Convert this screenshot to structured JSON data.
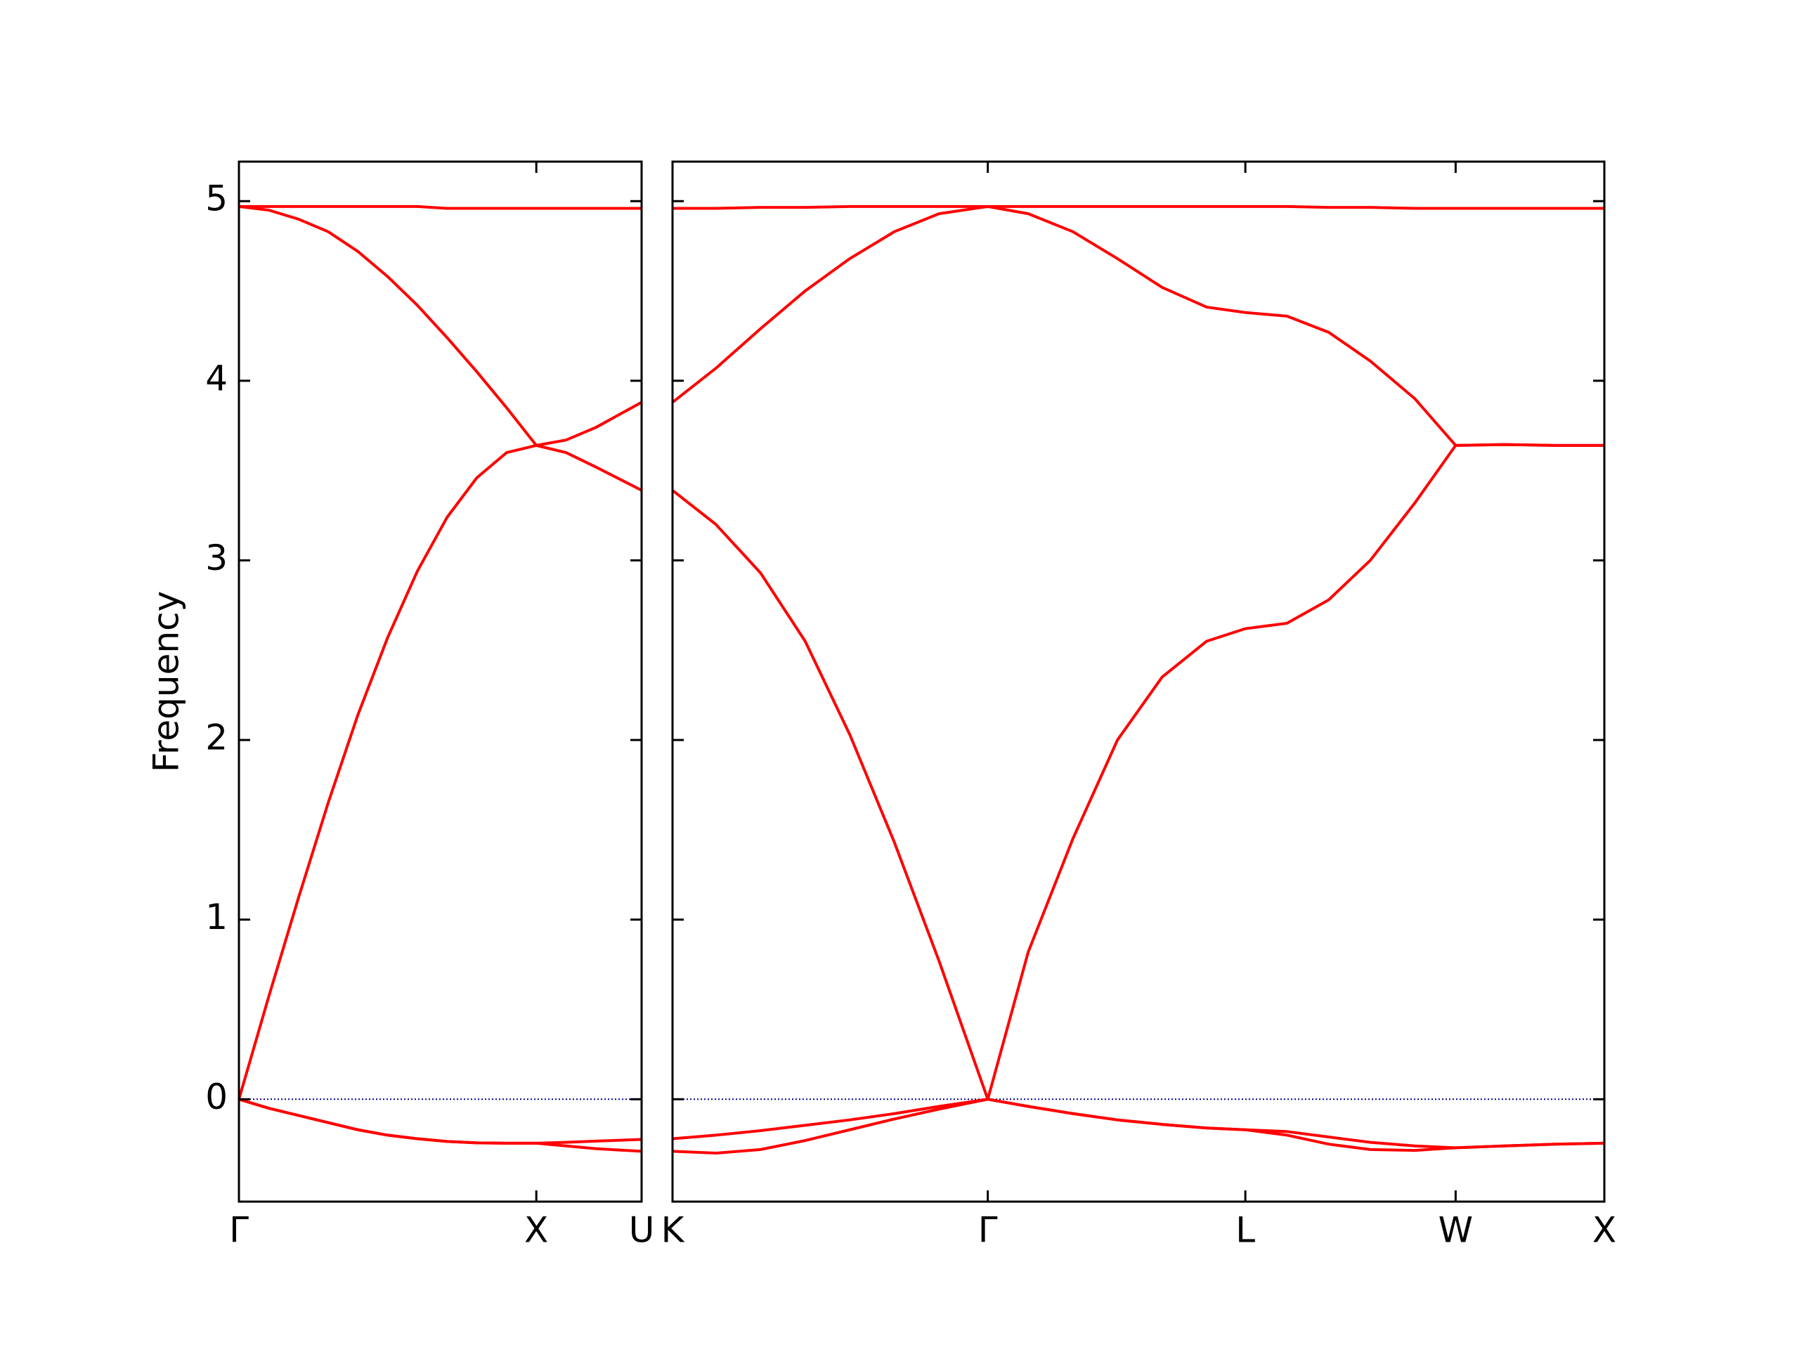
{
  "chart_data": {
    "type": "line",
    "ylabel": "Frequency",
    "ylim": [
      -0.57,
      5.22
    ],
    "yticks": [
      0,
      1,
      2,
      3,
      4,
      5
    ],
    "hline": 0,
    "hline_color": "#00008b",
    "color": "#ff0000",
    "panels": [
      {
        "xlim": [
          0,
          1.354
        ],
        "xticks": [
          {
            "value": 0,
            "label": "Γ"
          },
          {
            "value": 1.0,
            "label": "X"
          },
          {
            "value": 1.354,
            "label": "U"
          }
        ],
        "x": [
          0,
          0.1,
          0.2,
          0.3,
          0.4,
          0.5,
          0.6,
          0.7,
          0.8,
          0.9,
          1.0,
          1.1,
          1.2,
          1.354
        ],
        "series": [
          {
            "color": "#ff0000",
            "values": [
              4.97,
              4.97,
              4.97,
              4.97,
              4.97,
              4.97,
              4.97,
              4.96,
              4.96,
              4.96,
              4.96,
              4.96,
              4.96,
              4.96
            ]
          },
          {
            "color": "#ff0000",
            "values": [
              4.97,
              4.95,
              4.9,
              4.83,
              4.72,
              4.58,
              4.42,
              4.24,
              4.05,
              3.85,
              3.64,
              3.67,
              3.74,
              3.88
            ]
          },
          {
            "color": "#ff0000",
            "values": [
              0,
              0.57,
              1.12,
              1.65,
              2.14,
              2.57,
              2.94,
              3.24,
              3.46,
              3.6,
              3.64,
              3.6,
              3.52,
              3.39
            ]
          },
          {
            "color": "#ff0000",
            "values": [
              0,
              -0.05,
              -0.09,
              -0.13,
              -0.17,
              -0.2,
              -0.22,
              -0.235,
              -0.243,
              -0.245,
              -0.245,
              -0.24,
              -0.233,
              -0.224
            ]
          },
          {
            "color": "#ff0000",
            "values": [
              0,
              -0.05,
              -0.09,
              -0.13,
              -0.17,
              -0.2,
              -0.22,
              -0.235,
              -0.243,
              -0.245,
              -0.245,
              -0.26,
              -0.275,
              -0.29
            ]
          }
        ]
      },
      {
        "xlim": [
          1.354,
          4.487
        ],
        "xticks": [
          {
            "value": 1.354,
            "label": "K"
          },
          {
            "value": 2.414,
            "label": "Γ"
          },
          {
            "value": 3.28,
            "label": "L"
          },
          {
            "value": 3.987,
            "label": "W"
          },
          {
            "value": 4.487,
            "label": "X"
          }
        ],
        "x": [
          1.354,
          1.5,
          1.65,
          1.8,
          1.95,
          2.1,
          2.25,
          2.414,
          2.55,
          2.7,
          2.85,
          3.0,
          3.15,
          3.28,
          3.42,
          3.56,
          3.7,
          3.85,
          3.987,
          4.15,
          4.32,
          4.487
        ],
        "series": [
          {
            "color": "#ff0000",
            "values": [
              4.96,
              4.96,
              4.965,
              4.965,
              4.97,
              4.97,
              4.97,
              4.97,
              4.97,
              4.97,
              4.97,
              4.97,
              4.97,
              4.97,
              4.97,
              4.965,
              4.965,
              4.96,
              4.96,
              4.96,
              4.96,
              4.96
            ]
          },
          {
            "color": "#ff0000",
            "values": [
              3.88,
              4.07,
              4.29,
              4.5,
              4.68,
              4.83,
              4.93,
              4.97,
              4.93,
              4.83,
              4.68,
              4.52,
              4.41,
              4.38,
              4.36,
              4.27,
              4.11,
              3.9,
              3.64,
              3.645,
              3.64,
              3.64
            ]
          },
          {
            "color": "#ff0000",
            "values": [
              3.39,
              3.2,
              2.93,
              2.55,
              2.03,
              1.43,
              0.77,
              0,
              0.82,
              1.45,
              2.0,
              2.35,
              2.55,
              2.62,
              2.65,
              2.78,
              3.0,
              3.32,
              3.64,
              3.645,
              3.64,
              3.64
            ]
          },
          {
            "color": "#ff0000",
            "values": [
              -0.22,
              -0.2,
              -0.175,
              -0.145,
              -0.115,
              -0.08,
              -0.04,
              0,
              -0.04,
              -0.08,
              -0.115,
              -0.14,
              -0.16,
              -0.17,
              -0.18,
              -0.21,
              -0.24,
              -0.26,
              -0.27,
              -0.26,
              -0.25,
              -0.245
            ]
          },
          {
            "color": "#ff0000",
            "values": [
              -0.29,
              -0.3,
              -0.28,
              -0.23,
              -0.17,
              -0.11,
              -0.055,
              0,
              -0.04,
              -0.08,
              -0.115,
              -0.14,
              -0.16,
              -0.17,
              -0.2,
              -0.25,
              -0.28,
              -0.285,
              -0.27,
              -0.26,
              -0.25,
              -0.245
            ]
          }
        ]
      }
    ]
  }
}
